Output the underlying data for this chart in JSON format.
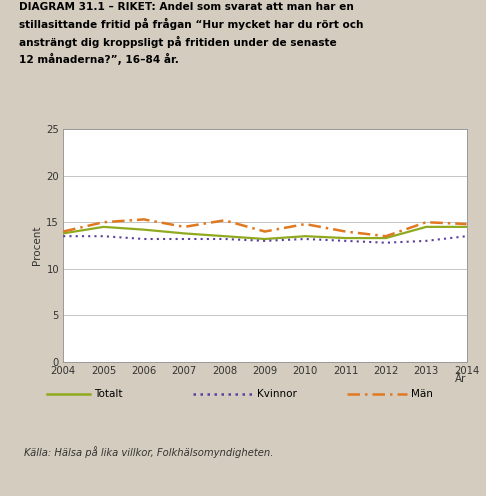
{
  "years": [
    2004,
    2005,
    2006,
    2007,
    2008,
    2009,
    2010,
    2011,
    2012,
    2013,
    2014
  ],
  "totalt": [
    13.8,
    14.5,
    14.2,
    13.8,
    13.5,
    13.2,
    13.5,
    13.3,
    13.3,
    14.5,
    14.5
  ],
  "kvinnor": [
    13.5,
    13.5,
    13.2,
    13.2,
    13.2,
    13.0,
    13.2,
    13.0,
    12.8,
    13.0,
    13.5
  ],
  "man": [
    14.0,
    15.0,
    15.3,
    14.5,
    15.2,
    14.0,
    14.8,
    14.0,
    13.5,
    15.0,
    14.8
  ],
  "ylabel": "Procent",
  "xlabel": "År",
  "ylim": [
    0,
    25
  ],
  "yticks": [
    0,
    5,
    10,
    15,
    20,
    25
  ],
  "bg_color": "#d4cdbf",
  "plot_bg": "#ffffff",
  "title_line1": "DIAGRAM 31.1 – RIKET: Andel som svarat att man har en",
  "title_line2": "stillasittande fritid på frågan “Hur mycket har du rört och",
  "title_line3": "ansträngt dig kroppsligt på fritiden under de senaste",
  "title_line4": "12 månaderna?”, 16–84 år.",
  "source": "Källa: Hälsa på lika villkor, Folkhälsomyndigheten.",
  "legend_totalt": "Totalt",
  "legend_kvinnor": "Kvinnor",
  "legend_man": "Män",
  "color_totalt": "#8faa1e",
  "color_kvinnor": "#5b3fa0",
  "color_man": "#e07820"
}
